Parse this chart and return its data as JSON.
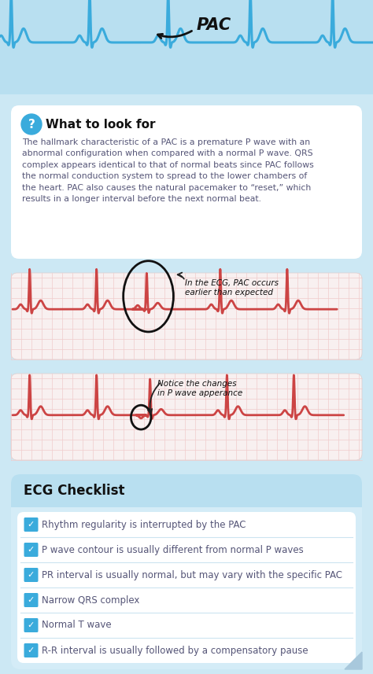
{
  "bg_color": "#cce8f4",
  "header_bg": "#b8dff0",
  "card_color": "#ffffff",
  "ecg_color_top": "#3aabdc",
  "ecg_color_mid": "#cc4444",
  "checklist_title": "ECG Checklist",
  "info_title": "What to look for",
  "info_text": "The hallmark characteristic of a PAC is a premature P wave with an\nabnormal configuration when compared with a normal P wave. QRS\ncomplex appears identical to that of normal beats since PAC follows\nthe normal conduction system to spread to the lower chambers of\nthe heart. PAC also causes the natural pacemaker to “reset,” which\nresults in a longer interval before the next normal beat.",
  "checklist_items": [
    "Rhythm regularity is interrupted by the PAC",
    "P wave contour is usually different from normal P waves",
    "PR interval is usually normal, but may vary with the specific PAC",
    "Narrow QRS complex",
    "Normal T wave",
    "R-R interval is usually followed by a compensatory pause"
  ],
  "ecg_annotation1": "In the ECG, PAC occurs\nearlier than expected",
  "ecg_annotation2": "Notice the changes\nin P wave apperance",
  "pac_label": "PAC",
  "check_color": "#3aabdc",
  "text_color": "#555577",
  "title_color": "#111111",
  "checklist_bg": "#d4ecf7",
  "checklist_title_bg": "#b8dff0",
  "ecg_panel_bg": "#f8f0f0",
  "ecg_grid_color": "#f0cccc"
}
